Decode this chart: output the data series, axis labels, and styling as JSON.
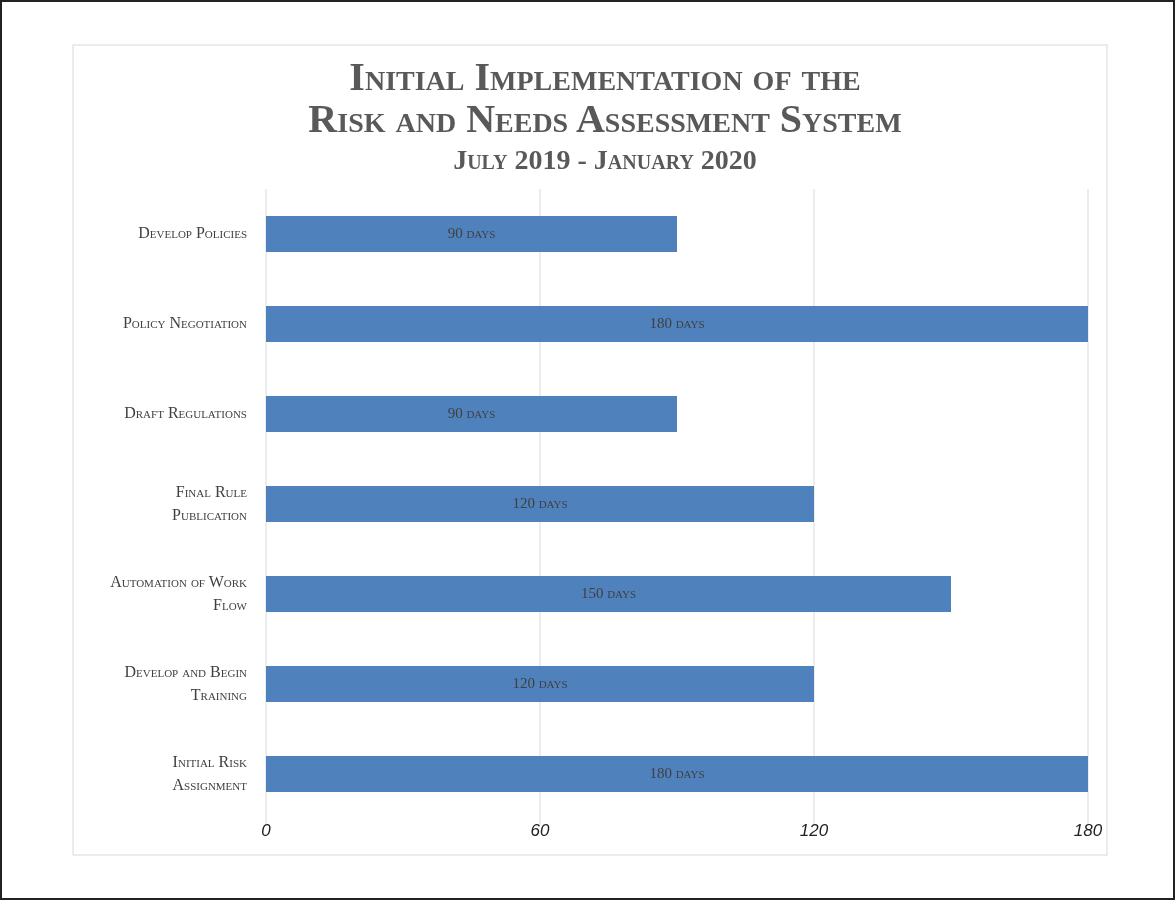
{
  "chart_data": {
    "type": "bar",
    "orientation": "horizontal",
    "title": "Initial Implementation of the Risk and Needs Assessment System",
    "subtitle": "July 2019 - January 2020",
    "categories": [
      "Develop Policies",
      "Policy Negotiation",
      "Draft Regulations",
      "Final Rule Publication",
      "Automation of Work Flow",
      "Develop and Begin Training",
      "Initial Risk Assignment"
    ],
    "values": [
      90,
      180,
      90,
      120,
      150,
      120,
      180
    ],
    "value_labels": [
      "90 days",
      "180 days",
      "90 days",
      "120 days",
      "150 days",
      "120 days",
      "180 days"
    ],
    "color": "#4f81bd",
    "xlim": [
      0,
      180
    ],
    "xticks": [
      0,
      60,
      120,
      180
    ],
    "grid": "x"
  }
}
